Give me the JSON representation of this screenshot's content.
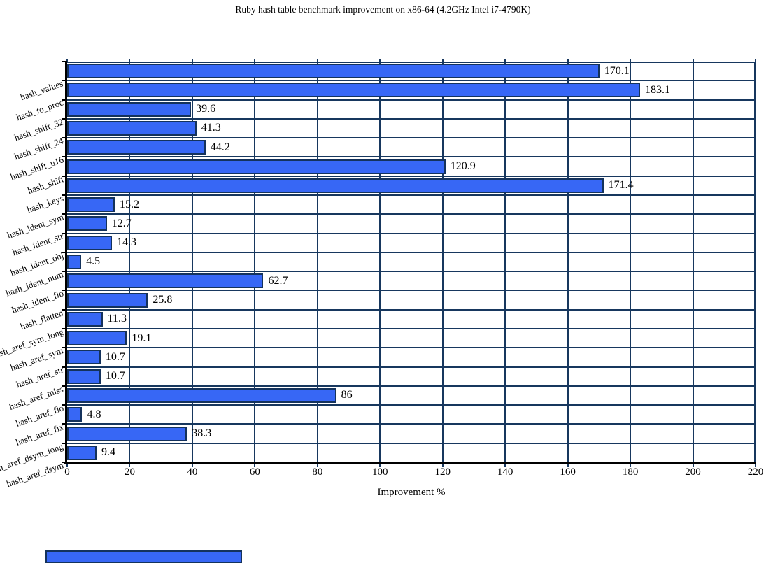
{
  "title": "Ruby hash table benchmark improvement on x86-64 (4.2GHz Intel i7-4790K)",
  "chart_data": {
    "type": "bar",
    "orientation": "horizontal",
    "title": "Ruby hash table benchmark improvement on x86-64 (4.2GHz Intel i7-4790K)",
    "xlabel": "Improvement %",
    "ylabel": "",
    "xlim": [
      0,
      220
    ],
    "xticks": [
      "0",
      "20",
      "40",
      "60",
      "80",
      "100",
      "120",
      "140",
      "160",
      "180",
      "200",
      "220"
    ],
    "grid": true,
    "legend": "none",
    "categories": [
      "hash_values",
      "hash_to_proc",
      "hash_shift_32",
      "hash_shift_24",
      "hash_shift_u16",
      "hash_shift",
      "hash_keys",
      "hash_ident_sym",
      "hash_ident_str",
      "hash_ident_obj",
      "hash_ident_num",
      "hash_ident_flo",
      "hash_flatten",
      "hash_aref_sym_long",
      "hash_aref_sym",
      "hash_aref_str",
      "hash_aref_miss",
      "hash_aref_flo",
      "hash_aref_fix",
      "hash_aref_dsym_long",
      "hash_aref_dsym"
    ],
    "values": [
      170.1,
      183.1,
      39.6,
      41.3,
      44.2,
      120.9,
      171.4,
      15.2,
      12.7,
      14.3,
      4.5,
      62.7,
      25.8,
      11.3,
      19.1,
      10.7,
      10.7,
      86,
      4.8,
      38.3,
      9.4
    ],
    "value_labels": [
      "170.1",
      "183.1",
      "39.6",
      "41.3",
      "44.2",
      "120.9",
      "171.4",
      "15.2",
      "12.7",
      "14.3",
      "4.5",
      "62.7",
      "25.8",
      "11.3",
      "19.1",
      "10.7",
      "10.7",
      "86",
      "4.8",
      "38.3",
      "9.4"
    ],
    "colors": {
      "bar_fill": "#3767F5",
      "bar_border": "#14325C",
      "gridline": "#17375E",
      "axis": "#000000",
      "text": "#000000",
      "background": "#FFFFFF"
    },
    "bottom_partial_bar": {
      "visible": true,
      "color": "#3767F5"
    }
  }
}
